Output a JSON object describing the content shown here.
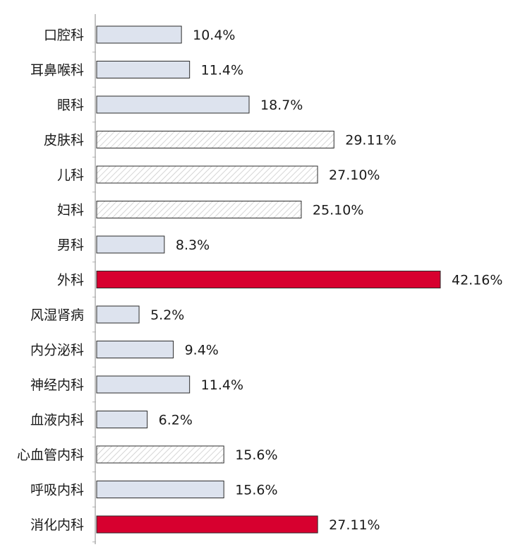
{
  "chart_data": {
    "type": "bar",
    "orientation": "horizontal",
    "title": "",
    "xlabel": "",
    "ylabel": "",
    "grid": false,
    "categories": [
      "口腔科",
      "耳鼻喉科",
      "眼科",
      "皮肤科",
      "儿科",
      "妇科",
      "男科",
      "外科",
      "风湿肾病",
      "内分泌科",
      "神经内科",
      "血液内科",
      "心血管内科",
      "呼吸内科",
      "消化内科"
    ],
    "values": [
      10.4,
      11.4,
      18.7,
      29.11,
      27.1,
      25.1,
      8.3,
      42.16,
      5.2,
      9.4,
      11.4,
      6.2,
      15.6,
      15.6,
      27.11
    ],
    "value_labels": [
      "10.4%",
      "11.4%",
      "18.7%",
      "29.11%",
      "27.10%",
      "25.10%",
      "8.3%",
      "42.16%",
      "5.2%",
      "9.4%",
      "11.4%",
      "6.2%",
      "15.6%",
      "15.6%",
      "27.11%"
    ],
    "styles": [
      "plain",
      "plain",
      "plain",
      "hatched",
      "hatched",
      "hatched",
      "plain",
      "highlight",
      "plain",
      "plain",
      "plain",
      "plain",
      "hatched",
      "plain",
      "highlight"
    ],
    "colors": {
      "plain_fill": "#dde3ee",
      "hatched_fill": "#ffffff",
      "hatch_stroke": "#c8c8c8",
      "highlight_fill": "#d7002f",
      "bar_stroke": "#2b2b2b",
      "axis": "#b0b0b0"
    },
    "xlim": [
      0,
      42.16
    ]
  }
}
